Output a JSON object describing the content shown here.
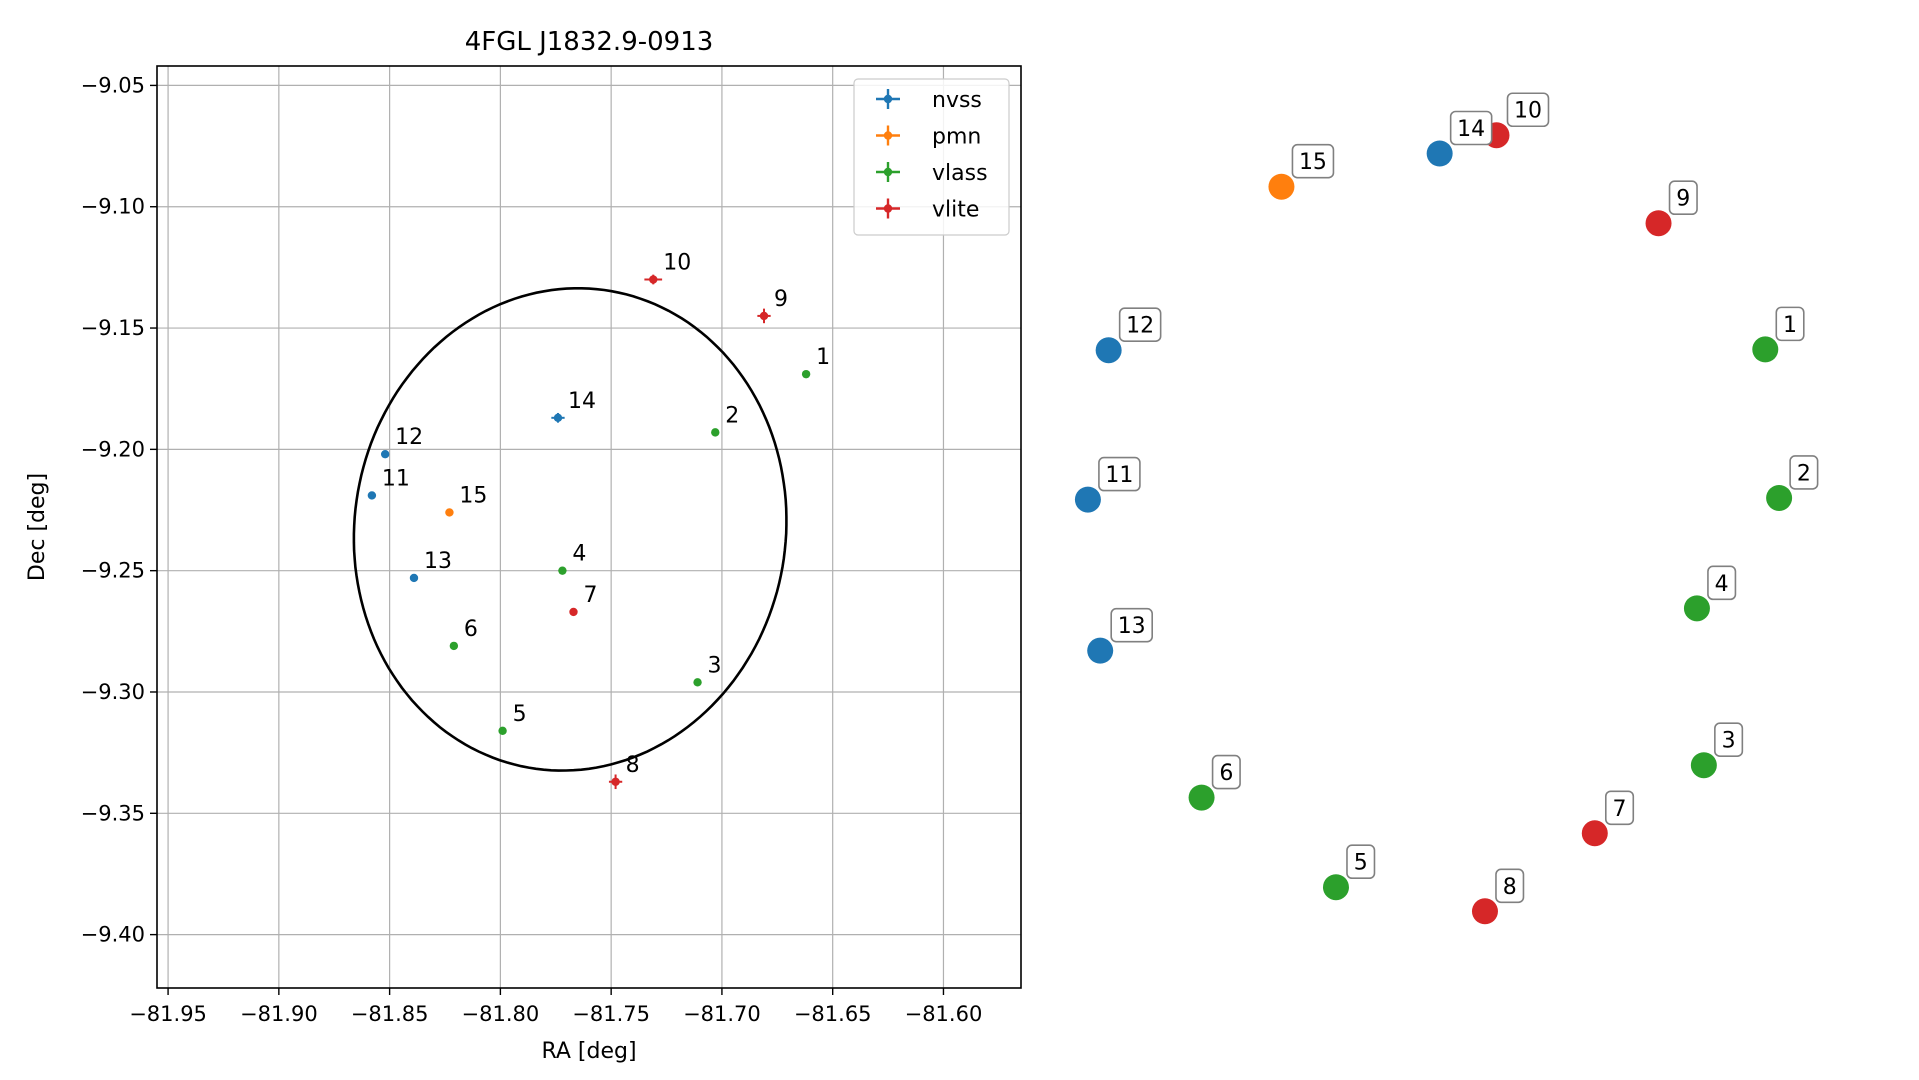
{
  "chart_data": [
    {
      "type": "scatter",
      "title": "4FGL J1832.9-0913",
      "xlabel": "RA [deg]",
      "ylabel": "Dec [deg]",
      "xlim": [
        -81.955,
        -81.565
      ],
      "ylim": [
        -9.422,
        -9.042
      ],
      "xticks": [
        -81.95,
        -81.9,
        -81.85,
        -81.8,
        -81.75,
        -81.7,
        -81.65,
        -81.6
      ],
      "xtick_labels": [
        "−81.95",
        "−81.90",
        "−81.85",
        "−81.80",
        "−81.75",
        "−81.70",
        "−81.65",
        "−81.60"
      ],
      "yticks": [
        -9.05,
        -9.1,
        -9.15,
        -9.2,
        -9.25,
        -9.3,
        -9.35,
        -9.4
      ],
      "ytick_labels": [
        "−9.05",
        "−9.10",
        "−9.15",
        "−9.20",
        "−9.25",
        "−9.30",
        "−9.35",
        "−9.40"
      ],
      "grid": true,
      "legend_position": "top-right",
      "series": [
        {
          "name": "nvss",
          "color": "#1f77b4",
          "points": [
            {
              "label": "11",
              "x": -81.858,
              "y": -9.219
            },
            {
              "label": "12",
              "x": -81.852,
              "y": -9.202
            },
            {
              "label": "13",
              "x": -81.839,
              "y": -9.253
            },
            {
              "label": "14",
              "x": -81.774,
              "y": -9.187,
              "xerr": 0.003,
              "yerr": 0.002
            }
          ]
        },
        {
          "name": "pmn",
          "color": "#ff7f0e",
          "points": [
            {
              "label": "15",
              "x": -81.823,
              "y": -9.226
            }
          ]
        },
        {
          "name": "vlass",
          "color": "#2ca02c",
          "points": [
            {
              "label": "1",
              "x": -81.662,
              "y": -9.169
            },
            {
              "label": "2",
              "x": -81.703,
              "y": -9.193
            },
            {
              "label": "3",
              "x": -81.711,
              "y": -9.296
            },
            {
              "label": "4",
              "x": -81.772,
              "y": -9.25
            },
            {
              "label": "5",
              "x": -81.799,
              "y": -9.316
            },
            {
              "label": "6",
              "x": -81.821,
              "y": -9.281
            }
          ]
        },
        {
          "name": "vlite",
          "color": "#d62728",
          "points": [
            {
              "label": "7",
              "x": -81.767,
              "y": -9.267
            },
            {
              "label": "8",
              "x": -81.748,
              "y": -9.337,
              "xerr": 0.003,
              "yerr": 0.003
            },
            {
              "label": "9",
              "x": -81.681,
              "y": -9.145,
              "xerr": 0.003,
              "yerr": 0.003
            },
            {
              "label": "10",
              "x": -81.731,
              "y": -9.13,
              "xerr": 0.004,
              "yerr": 0.002
            }
          ]
        }
      ],
      "ellipse": {
        "center": [
          -81.7685,
          -9.233
        ],
        "semi_x": 0.1005,
        "semi_y": 0.0965,
        "rotation_deg": 58,
        "color": "#000000"
      }
    },
    {
      "type": "scatter",
      "axes": false,
      "xlim": [
        0,
        1
      ],
      "ylim": [
        0,
        1
      ],
      "points": [
        {
          "label": "1",
          "color": "#2ca02c",
          "x": 0.891,
          "y": 0.714
        },
        {
          "label": "2",
          "color": "#2ca02c",
          "x": 0.909,
          "y": 0.535
        },
        {
          "label": "3",
          "color": "#2ca02c",
          "x": 0.811,
          "y": 0.213
        },
        {
          "label": "4",
          "color": "#2ca02c",
          "x": 0.802,
          "y": 0.402
        },
        {
          "label": "5",
          "color": "#2ca02c",
          "x": 0.332,
          "y": 0.066
        },
        {
          "label": "6",
          "color": "#2ca02c",
          "x": 0.157,
          "y": 0.174
        },
        {
          "label": "7",
          "color": "#d62728",
          "x": 0.669,
          "y": 0.131
        },
        {
          "label": "8",
          "color": "#d62728",
          "x": 0.526,
          "y": 0.037
        },
        {
          "label": "9",
          "color": "#d62728",
          "x": 0.752,
          "y": 0.866
        },
        {
          "label": "10",
          "color": "#d62728",
          "x": 0.541,
          "y": 0.972
        },
        {
          "label": "11",
          "color": "#1f77b4",
          "x": 0.009,
          "y": 0.533
        },
        {
          "label": "12",
          "color": "#1f77b4",
          "x": 0.036,
          "y": 0.713
        },
        {
          "label": "13",
          "color": "#1f77b4",
          "x": 0.025,
          "y": 0.351
        },
        {
          "label": "14",
          "color": "#1f77b4",
          "x": 0.467,
          "y": 0.95
        },
        {
          "label": "15",
          "color": "#ff7f0e",
          "x": 0.261,
          "y": 0.91
        }
      ]
    }
  ]
}
